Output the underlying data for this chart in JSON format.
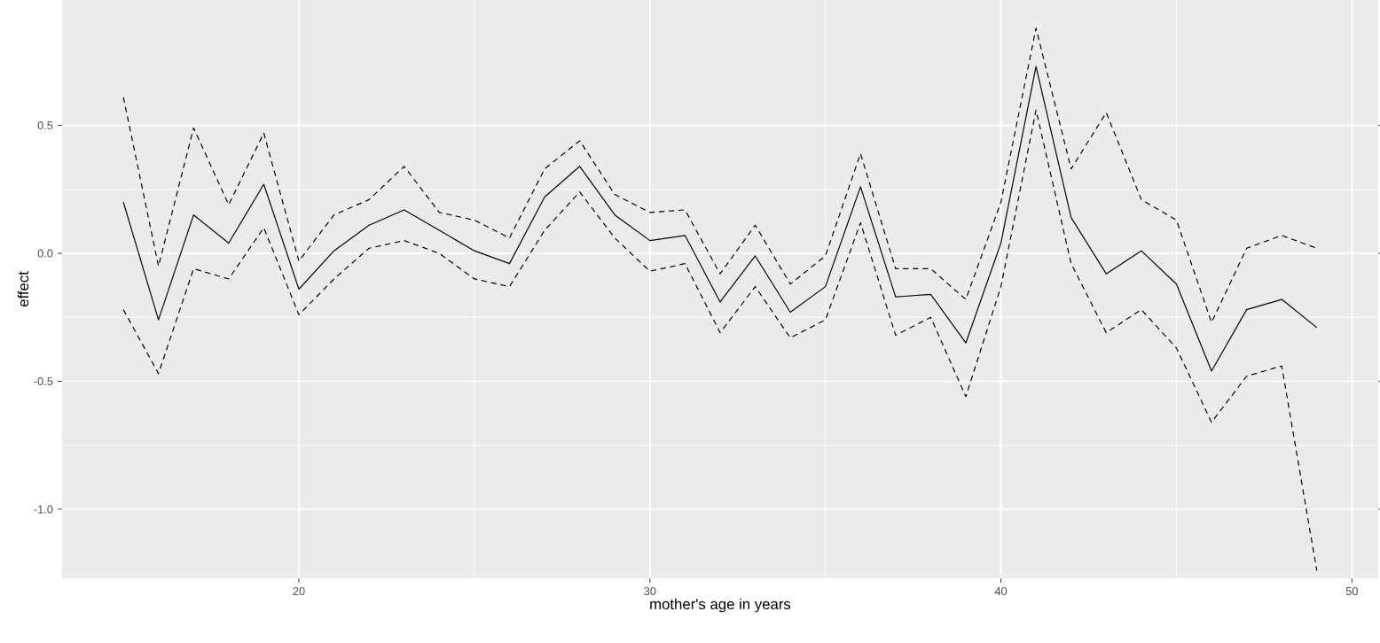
{
  "chart_data": {
    "type": "line",
    "xlabel": "mother's age in years",
    "ylabel": "effect",
    "x": [
      15,
      16,
      17,
      18,
      19,
      20,
      21,
      22,
      23,
      24,
      25,
      26,
      27,
      28,
      29,
      30,
      31,
      32,
      33,
      34,
      35,
      36,
      37,
      38,
      39,
      40,
      41,
      42,
      43,
      44,
      45,
      46,
      47,
      48,
      49
    ],
    "series": [
      {
        "color": "#000000",
        "line_style": "solid",
        "values": [
          0.2,
          -0.26,
          0.15,
          0.04,
          0.27,
          -0.14,
          0.01,
          0.11,
          0.17,
          0.09,
          0.01,
          -0.04,
          0.22,
          0.34,
          0.15,
          0.05,
          0.07,
          -0.19,
          -0.01,
          -0.23,
          -0.13,
          0.26,
          -0.17,
          -0.16,
          -0.35,
          0.04,
          0.73,
          0.14,
          -0.08,
          0.01,
          -0.12,
          -0.46,
          -0.22,
          -0.18,
          -0.29
        ]
      },
      {
        "color": "#000000",
        "line_style": "dashed",
        "values": [
          0.61,
          -0.05,
          0.49,
          0.19,
          0.47,
          -0.03,
          0.15,
          0.21,
          0.34,
          0.16,
          0.13,
          0.06,
          0.33,
          0.44,
          0.23,
          0.16,
          0.17,
          -0.08,
          0.11,
          -0.12,
          -0.01,
          0.39,
          -0.06,
          -0.06,
          -0.18,
          0.2,
          0.88,
          0.33,
          0.55,
          0.21,
          0.13,
          -0.27,
          0.02,
          0.07,
          0.02
        ]
      },
      {
        "color": "#000000",
        "line_style": "dashed",
        "values": [
          -0.22,
          -0.47,
          -0.06,
          -0.1,
          0.1,
          -0.24,
          -0.1,
          0.02,
          0.05,
          0.0,
          -0.1,
          -0.13,
          0.09,
          0.24,
          0.06,
          -0.07,
          -0.04,
          -0.31,
          -0.13,
          -0.33,
          -0.26,
          0.12,
          -0.32,
          -0.25,
          -0.56,
          -0.13,
          0.56,
          -0.04,
          -0.31,
          -0.22,
          -0.37,
          -0.66,
          -0.48,
          -0.44,
          -1.24
        ]
      }
    ],
    "xlim": [
      13.25,
      50.75
    ],
    "ylim": [
      -1.27,
      0.99
    ],
    "xticks": [
      20,
      30,
      40,
      50
    ],
    "yticks": [
      {
        "value": -1.0,
        "label": "-1.0"
      },
      {
        "value": -0.5,
        "label": "-0.5"
      },
      {
        "value": 0.0,
        "label": "0.0"
      },
      {
        "value": 0.5,
        "label": "0.5"
      }
    ],
    "grid": true
  }
}
